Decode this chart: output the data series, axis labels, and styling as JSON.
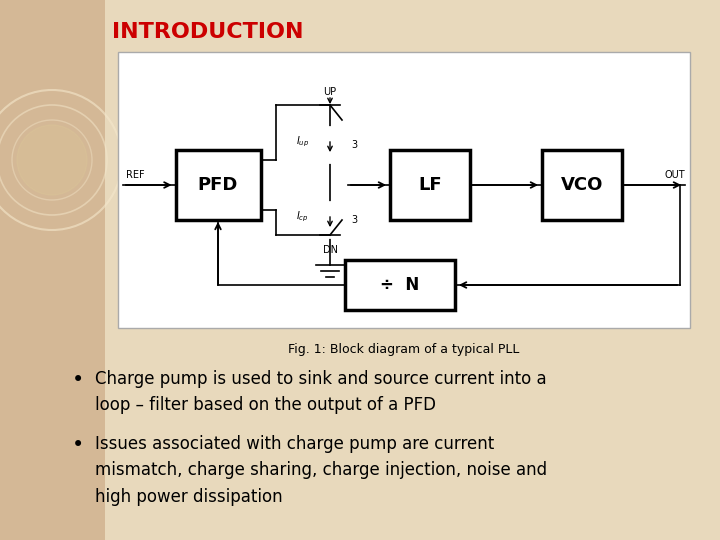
{
  "title": "INTRODUCTION",
  "title_color": "#cc0000",
  "title_fontsize": 16,
  "slide_bg": "#e8d9bc",
  "left_strip_color": "#d4b896",
  "diagram_bg": "#ffffff",
  "diagram_border": "#aaaaaa",
  "fig_caption": "Fig. 1: Block diagram of a typical PLL",
  "bullet1": "Charge pump is used to sink and source current into a\nloop – filter based on the output of a PFD",
  "bullet2": "Issues associated with charge pump are current\nmismatch, charge sharing, charge injection, noise and\nhigh power dissipation",
  "bullet_fontsize": 12,
  "caption_fontsize": 9
}
